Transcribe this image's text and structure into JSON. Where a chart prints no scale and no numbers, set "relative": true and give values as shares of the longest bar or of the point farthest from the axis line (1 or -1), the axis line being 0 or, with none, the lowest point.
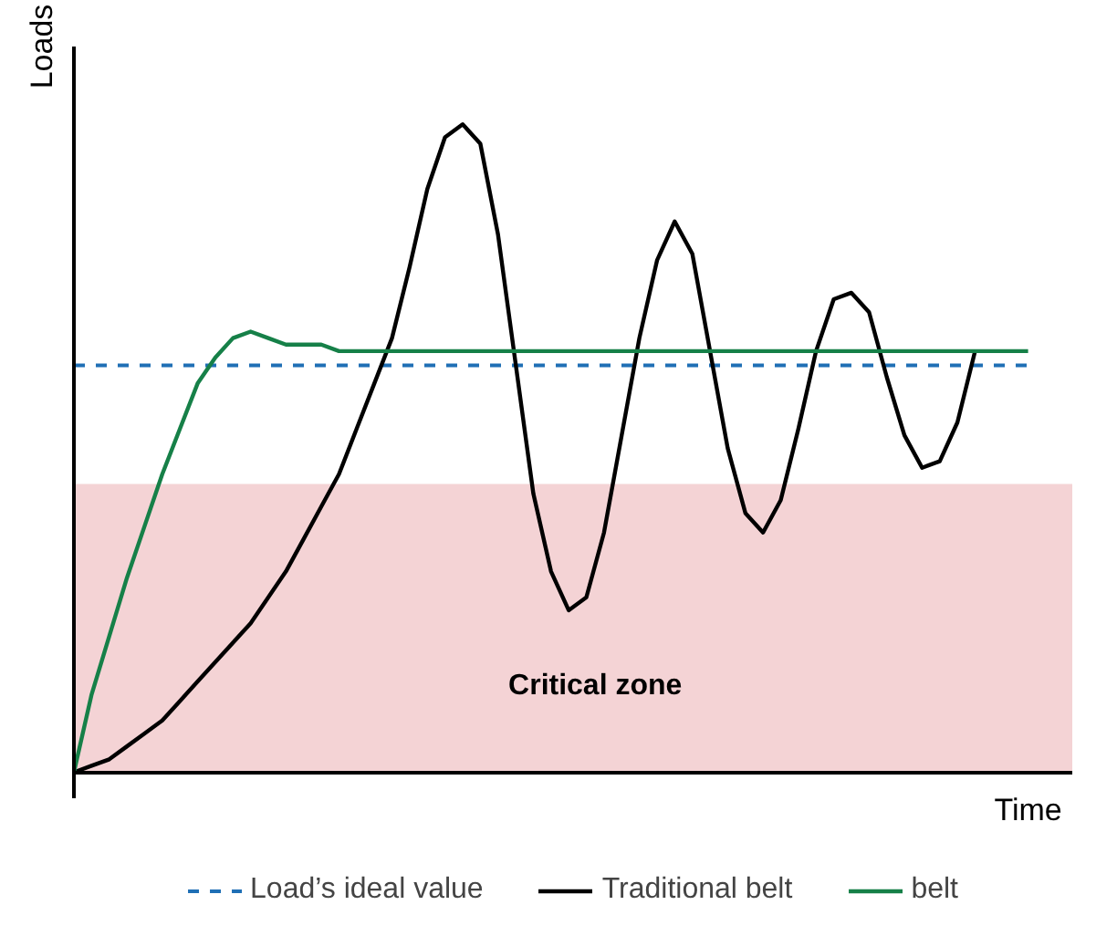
{
  "chart_data": {
    "type": "line",
    "relative": true,
    "xlabel": "Time",
    "ylabel": "Loads",
    "categories": [
      null,
      null,
      null,
      null,
      null,
      null,
      null,
      null,
      null,
      null,
      null,
      null,
      null,
      null,
      null,
      null,
      null,
      null,
      null,
      null,
      null,
      null,
      null,
      null,
      null,
      null,
      null,
      null,
      null,
      null,
      null,
      null,
      null,
      null,
      null,
      null,
      null,
      null,
      null,
      null,
      null,
      null,
      null,
      null,
      null,
      null,
      null,
      null,
      null,
      null,
      null,
      null,
      null,
      null,
      null
    ],
    "series": [
      {
        "name": "Traditional belt",
        "color": "#000000",
        "values": [
          0,
          0.01,
          0.02,
          0.04,
          0.06,
          0.08,
          0.11,
          0.14,
          0.17,
          0.2,
          0.23,
          0.27,
          0.31,
          0.36,
          0.41,
          0.46,
          0.53,
          0.6,
          0.67,
          0.78,
          0.9,
          0.98,
          1,
          0.97,
          0.83,
          0.63,
          0.43,
          0.31,
          0.25,
          0.27,
          0.37,
          0.52,
          0.67,
          0.79,
          0.85,
          0.8,
          0.65,
          0.5,
          0.4,
          0.37,
          0.42,
          0.53,
          0.65,
          0.73,
          0.74,
          0.71,
          0.61,
          0.52,
          0.47,
          0.48,
          0.54,
          0.65,
          null,
          null,
          null
        ]
      },
      {
        "name": "belt",
        "color": "#168048",
        "values": [
          0,
          0.12,
          0.21,
          0.3,
          0.38,
          0.46,
          0.53,
          0.6,
          0.64,
          0.67,
          0.68,
          0.67,
          0.66,
          0.66,
          0.66,
          0.65,
          0.65,
          0.65,
          0.65,
          0.65,
          0.65,
          0.65,
          0.65,
          0.65,
          0.65,
          0.65,
          0.65,
          0.65,
          0.65,
          0.65,
          0.65,
          0.65,
          0.65,
          0.65,
          0.65,
          0.65,
          0.65,
          0.65,
          0.65,
          0.65,
          0.65,
          0.65,
          0.65,
          0.65,
          0.65,
          0.65,
          0.65,
          0.65,
          0.65,
          0.65,
          0.65,
          0.65,
          0.65,
          0.65,
          0.65
        ]
      }
    ],
    "ref_lines": [
      {
        "axis": "y",
        "value": 0.628,
        "label": "Load’s ideal value",
        "color": "#1f6fb5",
        "line_style": "dashed"
      }
    ],
    "bands": [
      {
        "axis": "y",
        "from": 0,
        "to": 0.445,
        "label": "Critical zone",
        "color": "#f4d3d5"
      }
    ],
    "legend": "bottom",
    "grid": false
  }
}
